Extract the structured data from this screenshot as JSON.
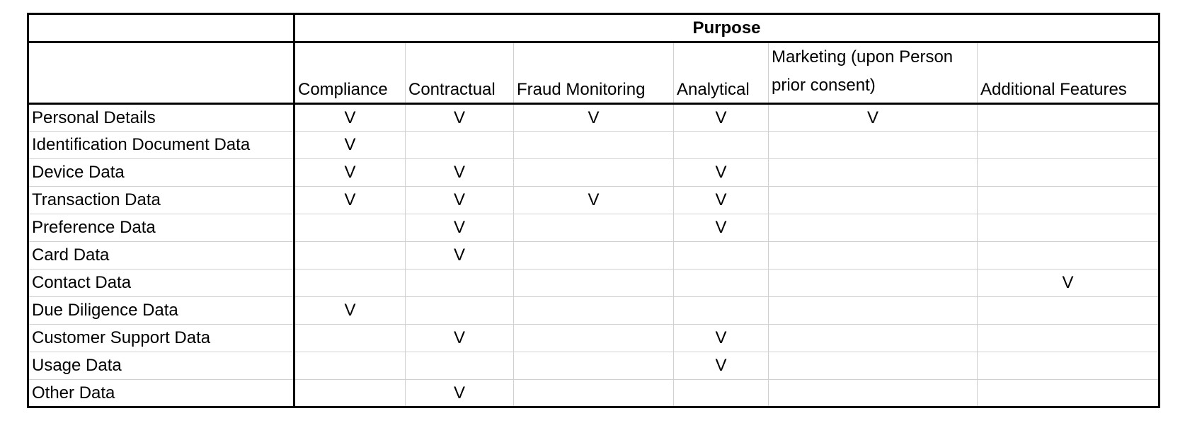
{
  "table": {
    "group_header": "Purpose",
    "columns": [
      "Compliance",
      "Contractual",
      "Fraud Monitoring",
      "Analytical",
      "Marketing (upon Person prior consent)",
      "Additional Features"
    ],
    "rows": [
      {
        "label": "Personal Details",
        "marks": [
          "V",
          "V",
          "V",
          "V",
          "V",
          ""
        ]
      },
      {
        "label": "Identification Document Data",
        "marks": [
          "V",
          "",
          "",
          "",
          "",
          ""
        ]
      },
      {
        "label": "Device Data",
        "marks": [
          "V",
          "V",
          "",
          "V",
          "",
          ""
        ]
      },
      {
        "label": "Transaction Data",
        "marks": [
          "V",
          "V",
          "V",
          "V",
          "",
          ""
        ]
      },
      {
        "label": "Preference Data",
        "marks": [
          "",
          "V",
          "",
          "V",
          "",
          ""
        ]
      },
      {
        "label": "Card Data",
        "marks": [
          "",
          "V",
          "",
          "",
          "",
          ""
        ]
      },
      {
        "label": "Contact Data",
        "marks": [
          "",
          "",
          "",
          "",
          "",
          "V"
        ]
      },
      {
        "label": "Due Diligence Data",
        "marks": [
          "V",
          "",
          "",
          "",
          "",
          ""
        ]
      },
      {
        "label": "Customer Support Data",
        "marks": [
          "",
          "V",
          "",
          "V",
          "",
          ""
        ]
      },
      {
        "label": "Usage Data",
        "marks": [
          "",
          "",
          "",
          "V",
          "",
          ""
        ]
      },
      {
        "label": "Other Data",
        "marks": [
          "",
          "V",
          "",
          "",
          "",
          ""
        ]
      }
    ]
  }
}
